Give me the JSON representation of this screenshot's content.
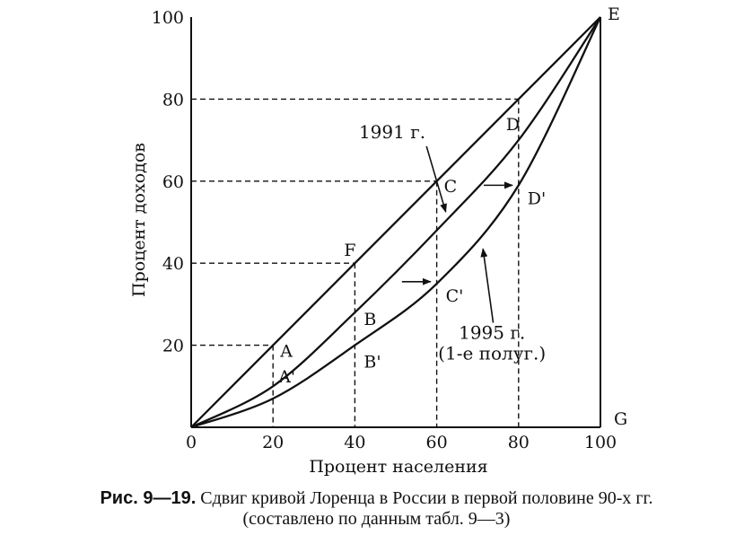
{
  "chart_data": {
    "type": "line",
    "title": "",
    "xlabel": "Процент населения",
    "ylabel": "Процент доходов",
    "xlim": [
      0,
      100
    ],
    "ylim": [
      0,
      100
    ],
    "x_ticks": [
      "0",
      "20",
      "40",
      "60",
      "80",
      "100"
    ],
    "y_ticks": [
      "20",
      "40",
      "60",
      "80",
      "100"
    ],
    "grid": false,
    "series": [
      {
        "key": "equality",
        "x": [
          0,
          20,
          40,
          60,
          80,
          100
        ],
        "y": [
          0,
          20,
          40,
          60,
          80,
          100
        ]
      },
      {
        "key": "lorenz_1991",
        "name": "1991 г.",
        "x": [
          0,
          20,
          40,
          60,
          80,
          100
        ],
        "y": [
          0,
          10,
          28,
          48,
          70,
          100
        ]
      },
      {
        "key": "lorenz_1995",
        "name": "1995 г. (1-е полуг.)",
        "x": [
          0,
          20,
          40,
          60,
          80,
          100
        ],
        "y": [
          0,
          7,
          20,
          35,
          59,
          100
        ]
      }
    ],
    "point_labels": [
      {
        "text": "A",
        "x": 20,
        "y": 20
      },
      {
        "text": "F",
        "x": 40,
        "y": 40
      },
      {
        "text": "C",
        "x": 60,
        "y": 60
      },
      {
        "text": "D",
        "x": 80,
        "y": 70
      },
      {
        "text": "B",
        "x": 40,
        "y": 28
      },
      {
        "text": "A'",
        "x": 20,
        "y": 7
      },
      {
        "text": "B'",
        "x": 40,
        "y": 20
      },
      {
        "text": "C'",
        "x": 60,
        "y": 35
      },
      {
        "text": "D'",
        "x": 80,
        "y": 59
      },
      {
        "text": "E",
        "x": 100,
        "y": 100
      },
      {
        "text": "G",
        "x": 100,
        "y": 0
      }
    ],
    "annotations": [
      {
        "lines": [
          "1991 г."
        ],
        "points_to": "lorenz_1991"
      },
      {
        "lines": [
          "1995 г.",
          "(1-е полуг.)"
        ],
        "points_to": "lorenz_1995"
      }
    ]
  },
  "caption": {
    "prefix": "Рис. 9—19.",
    "line1": "Сдвиг кривой Лоренца в России в первой половине 90-х гг.",
    "line2": "(составлено по данным табл. 9—3)"
  }
}
